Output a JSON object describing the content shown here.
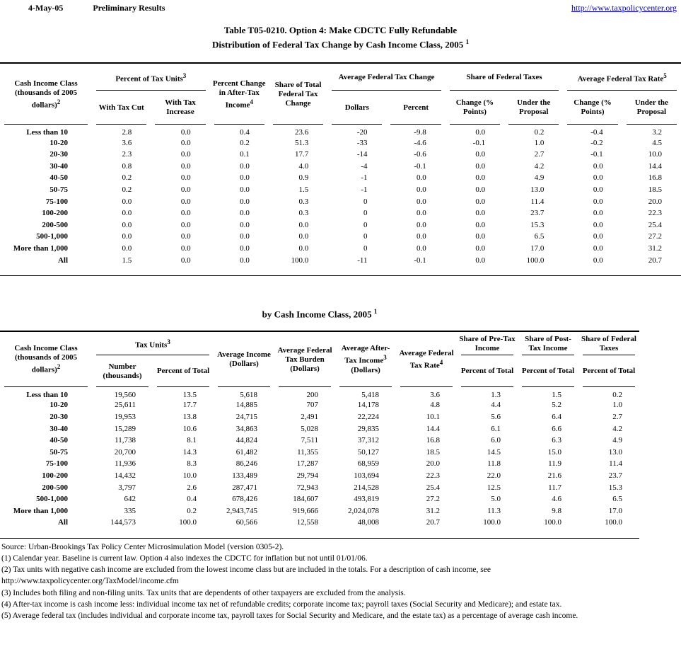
{
  "page": {
    "date": "4-May-05",
    "status": "Preliminary Results",
    "link": "http://www.taxpolicycenter.org",
    "colors": {
      "link_blue": "#0000dd",
      "text": "#000000",
      "background": "#ffffff"
    }
  },
  "title": {
    "line1": "Table T05-0210. Option 4: Make CDCTC Fully Refundable",
    "line2": "Distribution of Federal Tax Change by Cash Income Class, 2005",
    "sup": "1"
  },
  "table1": {
    "header": {
      "income_class": {
        "text": "Cash Income Class (thousands of 2005 dollars)",
        "sup": "2"
      },
      "pct_tax_units": {
        "text": "Percent of Tax Units",
        "sup": "3"
      },
      "with_tax_cut": "With Tax Cut",
      "with_tax_increase": "With Tax Increase",
      "pct_change_ati": {
        "text": "Percent Change in After-Tax Income",
        "sup": "4"
      },
      "share_total_change": "Share of Total Federal Tax Change",
      "avg_fed_tax_change": "Average Federal Tax Change",
      "dollars": "Dollars",
      "percent": "Percent",
      "share_fed_taxes": "Share of Federal Taxes",
      "change_points": "Change (% Points)",
      "under_proposal": "Under the Proposal",
      "avg_fed_tax_rate": {
        "text": "Average Federal Tax Rate",
        "sup": "5"
      },
      "change_points2": "Change (% Points)",
      "under_proposal2": "Under the Proposal"
    },
    "rows": [
      [
        "Less than 10",
        "2.8",
        "0.0",
        "0.4",
        "23.6",
        "-20",
        "-9.8",
        "0.0",
        "0.2",
        "-0.4",
        "3.2"
      ],
      [
        "10-20",
        "3.6",
        "0.0",
        "0.2",
        "51.3",
        "-33",
        "-4.6",
        "-0.1",
        "1.0",
        "-0.2",
        "4.5"
      ],
      [
        "20-30",
        "2.3",
        "0.0",
        "0.1",
        "17.7",
        "-14",
        "-0.6",
        "0.0",
        "2.7",
        "-0.1",
        "10.0"
      ],
      [
        "30-40",
        "0.8",
        "0.0",
        "0.0",
        "4.0",
        "-4",
        "-0.1",
        "0.0",
        "4.2",
        "0.0",
        "14.4"
      ],
      [
        "40-50",
        "0.2",
        "0.0",
        "0.0",
        "0.9",
        "-1",
        "0.0",
        "0.0",
        "4.9",
        "0.0",
        "16.8"
      ],
      [
        "50-75",
        "0.2",
        "0.0",
        "0.0",
        "1.5",
        "-1",
        "0.0",
        "0.0",
        "13.0",
        "0.0",
        "18.5"
      ],
      [
        "75-100",
        "0.0",
        "0.0",
        "0.0",
        "0.3",
        "0",
        "0.0",
        "0.0",
        "11.4",
        "0.0",
        "20.0"
      ],
      [
        "100-200",
        "0.0",
        "0.0",
        "0.0",
        "0.3",
        "0",
        "0.0",
        "0.0",
        "23.7",
        "0.0",
        "22.3"
      ],
      [
        "200-500",
        "0.0",
        "0.0",
        "0.0",
        "0.0",
        "0",
        "0.0",
        "0.0",
        "15.3",
        "0.0",
        "25.4"
      ],
      [
        "500-1,000",
        "0.0",
        "0.0",
        "0.0",
        "0.0",
        "0",
        "0.0",
        "0.0",
        "6.5",
        "0.0",
        "27.2"
      ],
      [
        "More than 1,000",
        "0.0",
        "0.0",
        "0.0",
        "0.0",
        "0",
        "0.0",
        "0.0",
        "17.0",
        "0.0",
        "31.2"
      ],
      [
        "All",
        "1.5",
        "0.0",
        "0.0",
        "100.0",
        "-11",
        "-0.1",
        "0.0",
        "100.0",
        "0.0",
        "20.7"
      ]
    ]
  },
  "table2_title": {
    "text": "by Cash Income Class, 2005",
    "sup": "1"
  },
  "table2": {
    "header": {
      "income_class": {
        "text": "Cash Income Class (thousands of 2005 dollars)",
        "sup": "2"
      },
      "tax_units": {
        "text": "Tax Units",
        "sup": "3"
      },
      "number_thousands": "Number (thousands)",
      "percent_of_total": "Percent of Total",
      "avg_income": "Average Income (Dollars)",
      "avg_burden": "Average Federal Tax Burden (Dollars)",
      "avg_after_tax_income": {
        "text": "Average After-Tax Income",
        "sup": "3",
        "text2": "(Dollars)"
      },
      "avg_rate": {
        "text": "Average Federal Tax Rate",
        "sup": "4"
      },
      "share_pretax": "Share of Pre-Tax Income",
      "share_posttax": "Share of Post-Tax Income",
      "share_fedtax": "Share of Federal Taxes",
      "pct_total_sub1": "Percent of Total",
      "pct_total_sub2": "Percent of Total",
      "pct_total_sub3": "Percent of Total"
    },
    "rows": [
      [
        "Less than 10",
        "19,560",
        "13.5",
        "5,618",
        "200",
        "5,418",
        "3.6",
        "1.3",
        "1.5",
        "0.2"
      ],
      [
        "10-20",
        "25,611",
        "17.7",
        "14,885",
        "707",
        "14,178",
        "4.8",
        "4.4",
        "5.2",
        "1.0"
      ],
      [
        "20-30",
        "19,953",
        "13.8",
        "24,715",
        "2,491",
        "22,224",
        "10.1",
        "5.6",
        "6.4",
        "2.7"
      ],
      [
        "30-40",
        "15,289",
        "10.6",
        "34,863",
        "5,028",
        "29,835",
        "14.4",
        "6.1",
        "6.6",
        "4.2"
      ],
      [
        "40-50",
        "11,738",
        "8.1",
        "44,824",
        "7,511",
        "37,312",
        "16.8",
        "6.0",
        "6.3",
        "4.9"
      ],
      [
        "50-75",
        "20,700",
        "14.3",
        "61,482",
        "11,355",
        "50,127",
        "18.5",
        "14.5",
        "15.0",
        "13.0"
      ],
      [
        "75-100",
        "11,936",
        "8.3",
        "86,246",
        "17,287",
        "68,959",
        "20.0",
        "11.8",
        "11.9",
        "11.4"
      ],
      [
        "100-200",
        "14,432",
        "10.0",
        "133,489",
        "29,794",
        "103,694",
        "22.3",
        "22.0",
        "21.6",
        "23.7"
      ],
      [
        "200-500",
        "3,797",
        "2.6",
        "287,471",
        "72,943",
        "214,528",
        "25.4",
        "12.5",
        "11.7",
        "15.3"
      ],
      [
        "500-1,000",
        "642",
        "0.4",
        "678,426",
        "184,607",
        "493,819",
        "27.2",
        "5.0",
        "4.6",
        "6.5"
      ],
      [
        "More than 1,000",
        "335",
        "0.2",
        "2,943,745",
        "919,666",
        "2,024,078",
        "31.2",
        "11.3",
        "9.8",
        "17.0"
      ],
      [
        "All",
        "144,573",
        "100.0",
        "60,566",
        "12,558",
        "48,008",
        "20.7",
        "100.0",
        "100.0",
        "100.0"
      ]
    ]
  },
  "footnotes": [
    "Source: Urban-Brookings Tax Policy Center Microsimulation Model (version 0305-2).",
    "(1) Calendar year. Baseline is current law. Option 4 also indexes the CDCTC for inflation but not until 01/01/06.",
    "(2) Tax units with negative cash income are excluded from the lowest income class but are included in the totals. For a description of cash income, see",
    "http://www.taxpolicycenter.org/TaxModel/income.cfm",
    "(3) Includes both filing and non-filing units.  Tax units that are dependents of other taxpayers are excluded from the analysis.",
    "(4) After-tax income is cash income less: individual income tax net of refundable credits; corporate income tax; payroll taxes (Social Security and Medicare); and estate tax.",
    "(5) Average federal tax (includes individual and corporate income tax, payroll taxes for Social Security and Medicare, and the estate tax) as a percentage of average cash income."
  ]
}
